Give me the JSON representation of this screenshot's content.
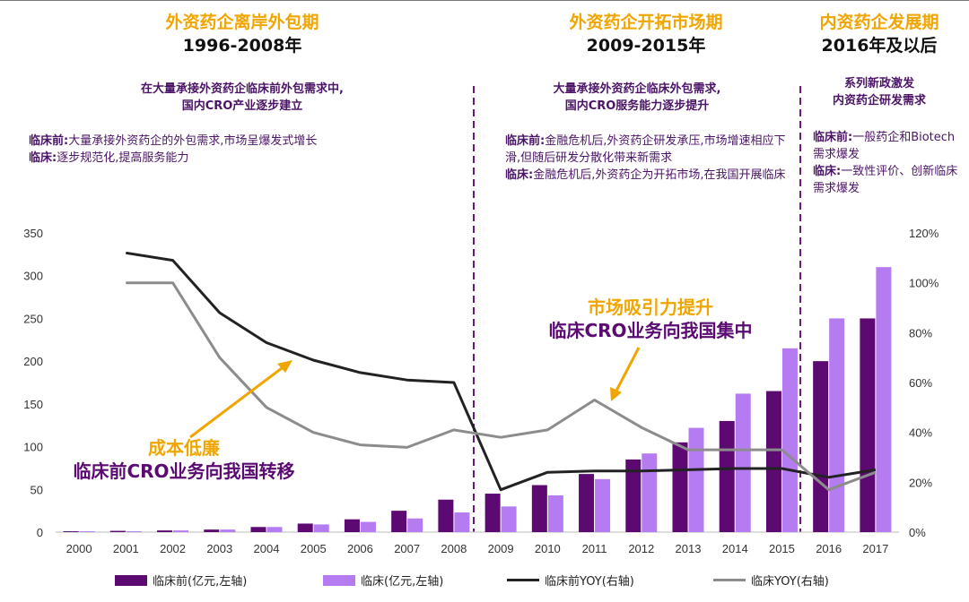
{
  "periods": [
    {
      "title": "外资药企离岸外包期",
      "years": "1996-2008年",
      "summary": [
        "在大量承接外资药企临床前外包需求中,",
        "国内CRO产业逐步建立"
      ],
      "notes": [
        {
          "label": "临床前:",
          "text": "大量承接外资药企的外包需求,市场呈爆发式增长"
        },
        {
          "label": "临床:",
          "text": "逐步规范化,提高服务能力"
        }
      ]
    },
    {
      "title": "外资药企开拓市场期",
      "years": "2009-2015年",
      "summary": [
        "大量承接外资药企临床外包需求,",
        "国内CRO服务能力逐步提升"
      ],
      "notes": [
        {
          "label": "临床前:",
          "text": "金融危机后,外资药企研发承压,市场增速相应下滑,但随后研发分散化带来新需求"
        },
        {
          "label": "临床:",
          "text": "金融危机后,外资药企为开拓市场,在我国开展临床"
        }
      ]
    },
    {
      "title": "内资药企发展期",
      "years": "2016年及以后",
      "summary": [
        "系列新政激发",
        "内资药企研发需求"
      ],
      "notes": [
        {
          "label": "临床前:",
          "text": "一般药企和Biotech需求爆发"
        },
        {
          "label": "临床:",
          "text": "一致性评价、创新临床需求爆发"
        }
      ]
    }
  ],
  "annotations": [
    {
      "line1": "成本低廉",
      "line2": "临床前CRO业务向我国转移"
    },
    {
      "line1": "市场吸引力提升",
      "line2": "临床CRO业务向我国集中"
    }
  ],
  "colors": {
    "preclinical": "#5c0a72",
    "clinical": "#b57cf2",
    "preclinical_yoy": "#222222",
    "clinical_yoy": "#8c8c8c",
    "accent": "#f0a500",
    "divider": "#6a1b7a"
  },
  "chart_data": {
    "type": "bar",
    "categories": [
      "2000",
      "2001",
      "2002",
      "2003",
      "2004",
      "2005",
      "2006",
      "2007",
      "2008",
      "2009",
      "2010",
      "2011",
      "2012",
      "2013",
      "2014",
      "2015",
      "2016",
      "2017"
    ],
    "series": [
      {
        "name": "临床前(亿元,左轴)",
        "axis": "left",
        "kind": "bar",
        "values": [
          1,
          1.5,
          2,
          3,
          6,
          10,
          15,
          25,
          38,
          45,
          55,
          68,
          85,
          105,
          130,
          165,
          200,
          250
        ]
      },
      {
        "name": "临床(亿元,左轴)",
        "axis": "left",
        "kind": "bar",
        "values": [
          1,
          1,
          2,
          3,
          6,
          9,
          12,
          16,
          23,
          30,
          43,
          62,
          92,
          122,
          162,
          215,
          250,
          310
        ]
      },
      {
        "name": "临床前YOY(右轴)",
        "axis": "right",
        "kind": "line",
        "values": [
          null,
          112,
          109,
          88,
          76,
          69,
          64,
          61,
          60,
          17,
          24,
          24.5,
          24.5,
          25,
          25.5,
          25.5,
          22,
          25
        ]
      },
      {
        "name": "临床YOY(右轴)",
        "axis": "right",
        "kind": "line",
        "values": [
          null,
          100,
          100,
          70,
          50,
          40,
          35,
          34,
          41,
          38,
          41,
          53,
          42,
          33,
          33,
          33,
          17,
          24
        ]
      }
    ],
    "y_left": {
      "ticks": [
        "0",
        "50",
        "100",
        "150",
        "200",
        "250",
        "300",
        "350"
      ],
      "range": [
        0,
        350
      ]
    },
    "y_right": {
      "ticks": [
        "0%",
        "20%",
        "40%",
        "60%",
        "80%",
        "100%",
        "120%"
      ],
      "range": [
        0,
        120
      ]
    },
    "legend_position": "bottom",
    "grid": false
  }
}
